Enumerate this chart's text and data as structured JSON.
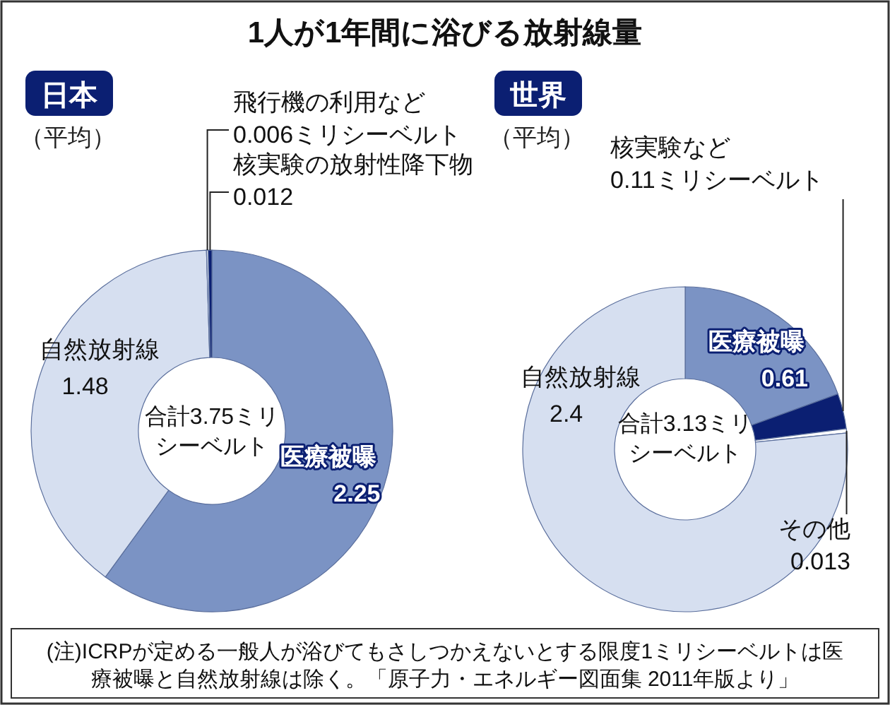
{
  "chart_data": [
    {
      "type": "donut",
      "title": "日本",
      "subtitle": "（平均）",
      "categories": [
        "医療被曝",
        "自然放射線",
        "飛行機の利用など",
        "核実験の放射性降下物"
      ],
      "values": [
        2.25,
        1.48,
        0.006,
        0.012
      ],
      "colors": [
        "#7b93c4",
        "#d6dff0",
        "#e8ecf5",
        "#0b1f72"
      ],
      "value_labels": [
        "2.25",
        "1.48",
        "0.006ミリシーベルト",
        "0.012"
      ],
      "annotations": [
        "1人が1年間に浴びる放射線量",
        "合計3.75ミリシーベルト"
      ]
    },
    {
      "type": "donut",
      "title": "世界",
      "subtitle": "（平均）",
      "categories": [
        "医療被曝",
        "核実験など",
        "その他",
        "自然放射線"
      ],
      "values": [
        0.61,
        0.11,
        0.013,
        2.4
      ],
      "colors": [
        "#7b93c4",
        "#0b1f72",
        "#ffffff",
        "#d6dff0"
      ],
      "value_labels": [
        "0.61",
        "0.11ミリシーベルト",
        "0.013",
        "2.4"
      ],
      "annotations": [
        "合計3.13ミリシーベルト",
        "(注)ICRPが定める一般人が浴びてもさしつかえないとする限度1ミリシーベルトは医療被曝と自然放射線は除く。「原子力・エネルギー図面集 2011年版より」"
      ]
    }
  ]
}
